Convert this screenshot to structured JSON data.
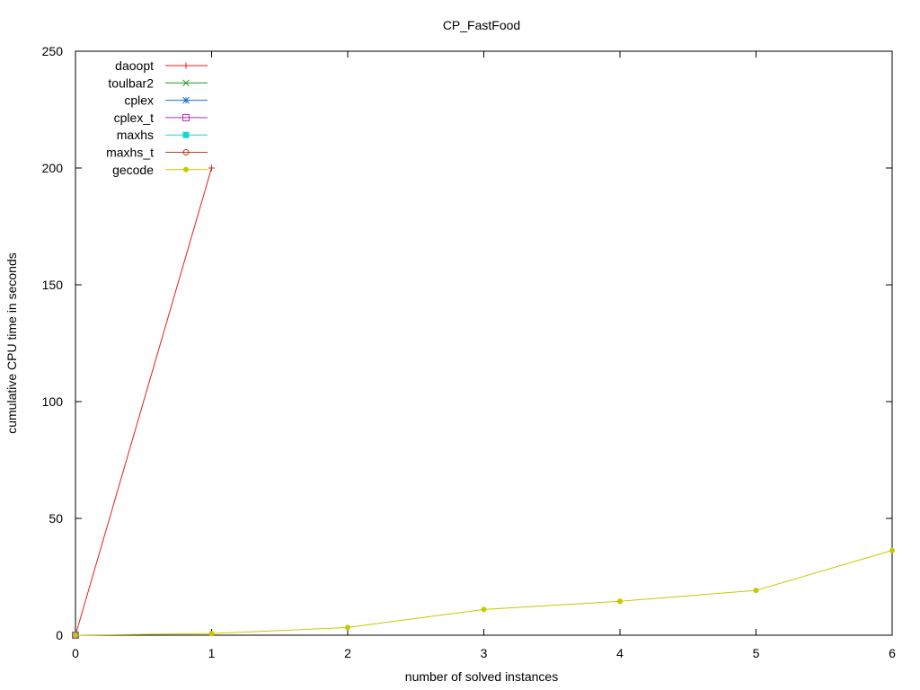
{
  "chart_data": {
    "type": "line",
    "title": "CP_FastFood",
    "xlabel": "number of solved instances",
    "ylabel": "cumulative CPU time in seconds",
    "xlim": [
      0,
      6
    ],
    "ylim": [
      0,
      250
    ],
    "xticks": [
      0,
      1,
      2,
      3,
      4,
      5,
      6
    ],
    "yticks": [
      0,
      50,
      100,
      150,
      200,
      250
    ],
    "grid": false,
    "legend_position": "top-left",
    "series": [
      {
        "name": "daoopt",
        "color": "#e0201c",
        "marker": "plus",
        "x": [
          0,
          1
        ],
        "y": [
          0,
          200
        ]
      },
      {
        "name": "toulbar2",
        "color": "#1e9a1e",
        "marker": "cross",
        "x": [
          0
        ],
        "y": [
          0
        ]
      },
      {
        "name": "cplex",
        "color": "#1e6fd0",
        "marker": "star",
        "x": [
          0
        ],
        "y": [
          0
        ]
      },
      {
        "name": "cplex_t",
        "color": "#b028c8",
        "marker": "square-open",
        "x": [
          0
        ],
        "y": [
          0
        ]
      },
      {
        "name": "maxhs",
        "color": "#18d6d6",
        "marker": "square-filled",
        "x": [
          0
        ],
        "y": [
          0
        ]
      },
      {
        "name": "maxhs_t",
        "color": "#b8401a",
        "marker": "circle-open",
        "x": [
          0
        ],
        "y": [
          0
        ]
      },
      {
        "name": "gecode",
        "color": "#c8c800",
        "marker": "circle-filled",
        "x": [
          0,
          1,
          2,
          3,
          4,
          5,
          6
        ],
        "y": [
          0,
          0.7,
          3.3,
          11,
          14.5,
          19.2,
          36.3
        ]
      }
    ]
  }
}
